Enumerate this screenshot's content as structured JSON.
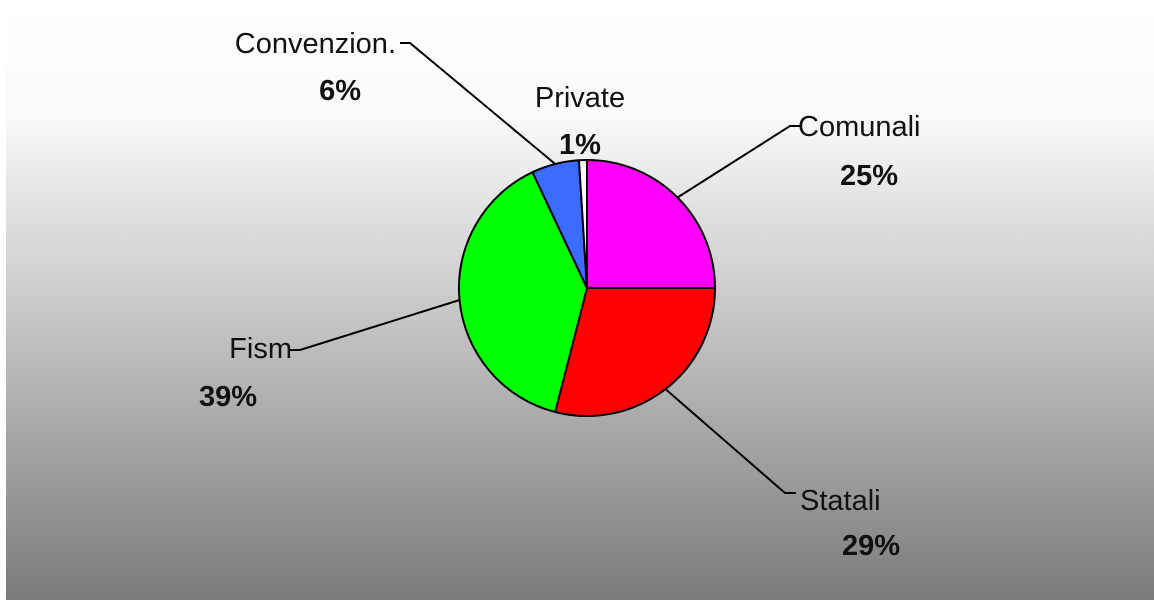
{
  "chart_data": {
    "type": "pie",
    "title": "",
    "categories": [
      "Comunali",
      "Statali",
      "Fism",
      "Convenzion.",
      "Private"
    ],
    "values": [
      25,
      29,
      39,
      6,
      1
    ],
    "value_labels": [
      "25%",
      "29%",
      "39%",
      "6%",
      "1%"
    ],
    "colors": [
      "#ff00ff",
      "#ff0000",
      "#00ff00",
      "#3c6cff",
      "#ffffff"
    ],
    "start_angle_deg": 0,
    "direction": "clockwise",
    "legend": "none",
    "background": "gradient-white-to-gray"
  }
}
